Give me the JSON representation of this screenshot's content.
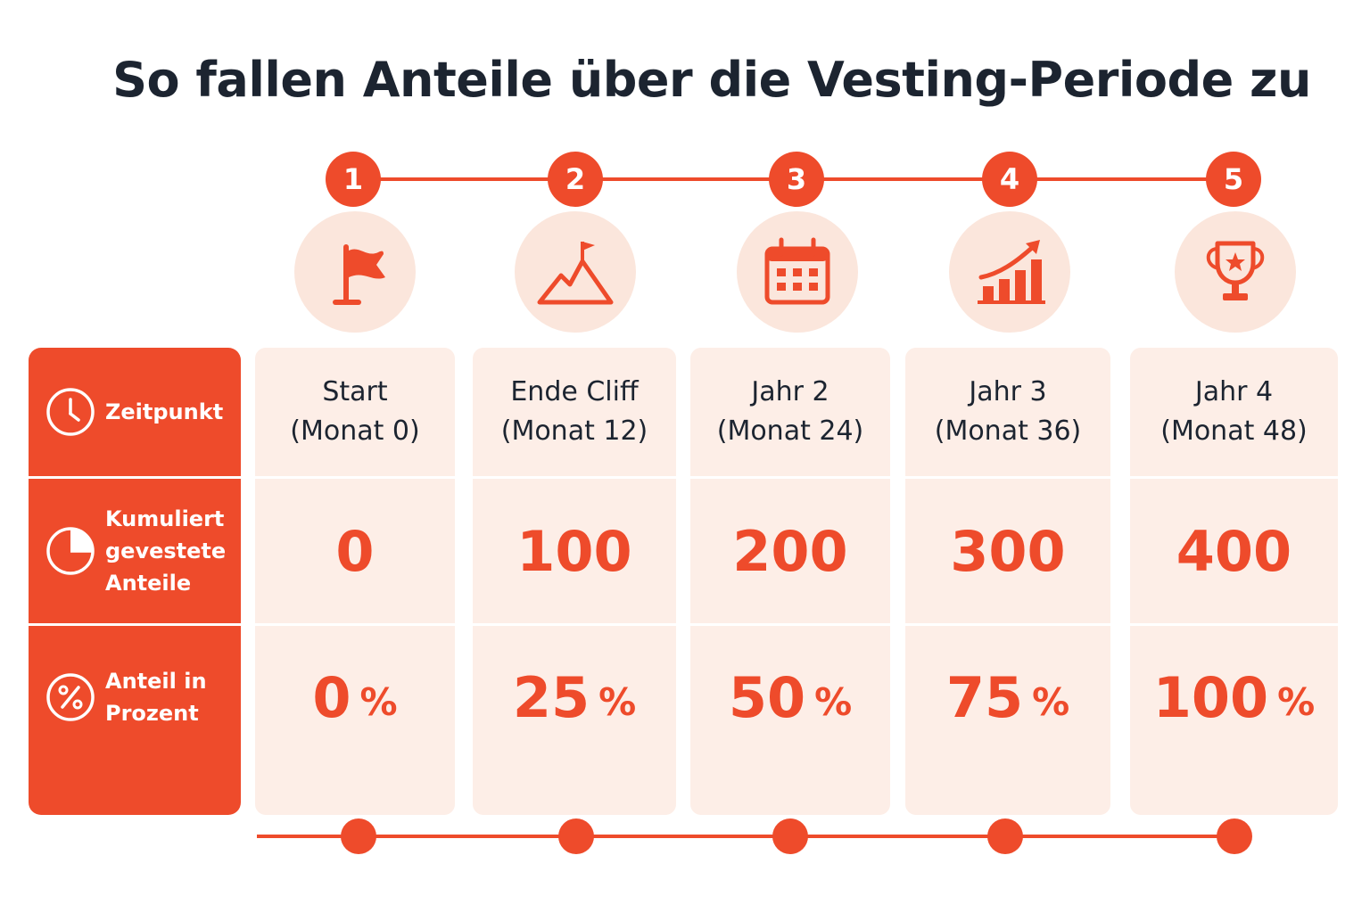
{
  "title": "So fallen Anteile über die Vesting-Periode zu",
  "colors": {
    "accent": "#ee4b2b",
    "cell_bg": "#fdeee7",
    "icon_bg": "#fbe6dc",
    "title": "#1c2430"
  },
  "row_labels": [
    {
      "icon": "clock-icon",
      "text": "Zeitpunkt"
    },
    {
      "icon": "pie-chart-icon",
      "lines": [
        "Kumuliert",
        "gevestete",
        "Anteile"
      ]
    },
    {
      "icon": "percent-icon",
      "lines": [
        "Anteil in",
        "Prozent"
      ]
    }
  ],
  "steps": [
    {
      "number": "1",
      "icon": "flag-icon",
      "time_line1": "Start",
      "time_line2": "(Monat 0)",
      "shares": "0",
      "percent": "0",
      "percent_sign": "%"
    },
    {
      "number": "2",
      "icon": "mountain-flag-icon",
      "time_line1": "Ende Cliff",
      "time_line2": "(Monat 12)",
      "shares": "100",
      "percent": "25",
      "percent_sign": "%"
    },
    {
      "number": "3",
      "icon": "calendar-icon",
      "time_line1": "Jahr 2",
      "time_line2": "(Monat 24)",
      "shares": "200",
      "percent": "50",
      "percent_sign": "%"
    },
    {
      "number": "4",
      "icon": "growth-chart-icon",
      "time_line1": "Jahr 3",
      "time_line2": "(Monat 36)",
      "shares": "300",
      "percent": "75",
      "percent_sign": "%"
    },
    {
      "number": "5",
      "icon": "trophy-icon",
      "time_line1": "Jahr 4",
      "time_line2": "(Monat 48)",
      "shares": "400",
      "percent": "100",
      "percent_sign": "%"
    }
  ]
}
